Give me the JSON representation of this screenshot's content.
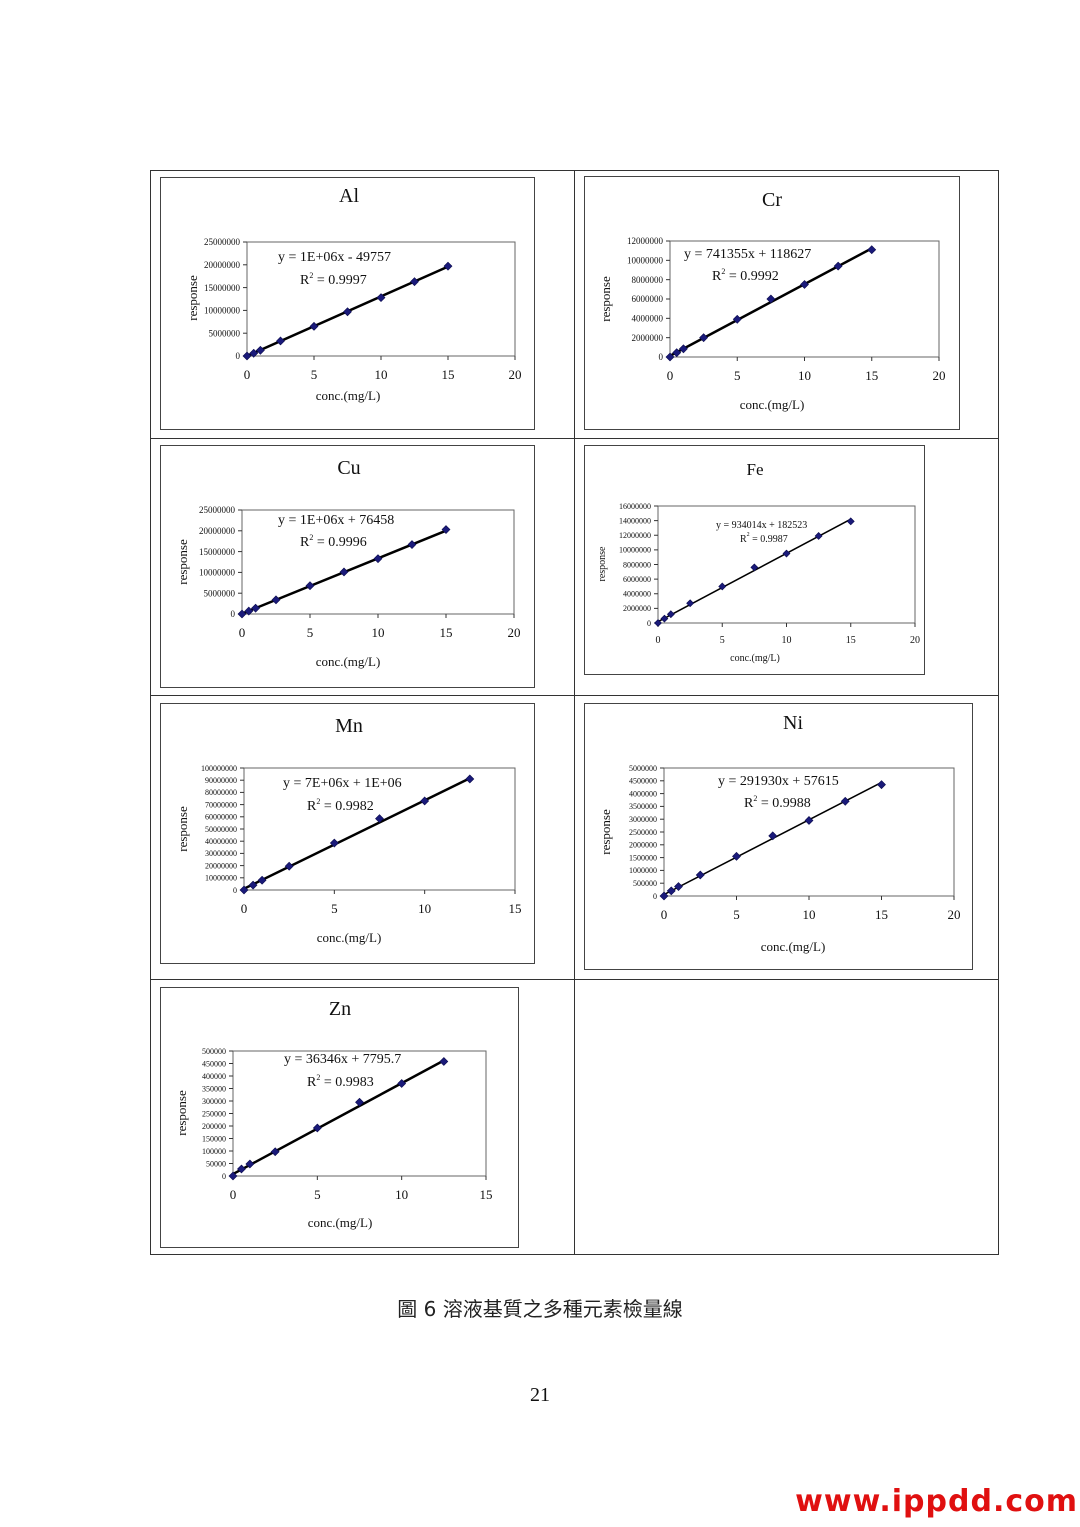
{
  "caption": "圖 6  溶液基質之多種元素檢量線",
  "page_number": "21",
  "watermark": "www.ippdd.com",
  "colors": {
    "marker": "#1a1a7a",
    "line": "#000000",
    "frame": "#444444"
  },
  "chart_data": [
    {
      "id": "al",
      "type": "scatter",
      "title": "Al",
      "xlabel": "conc.(mg/L)",
      "ylabel": "response",
      "xlim": [
        0,
        20
      ],
      "ylim": [
        0,
        25000000
      ],
      "xticks": [
        "0",
        "5",
        "10",
        "15",
        "20"
      ],
      "yticks": [
        "0",
        "5000000",
        "10000000",
        "15000000",
        "20000000",
        "25000000"
      ],
      "equation": "y = 1E+06x - 49757",
      "r2_value": " = 0.9997",
      "fit": {
        "slope": 1310000,
        "intercept": -49757
      },
      "x": [
        0,
        0.5,
        1,
        2.5,
        5,
        7.5,
        10,
        12.5,
        15
      ],
      "y": [
        0,
        600000,
        1250000,
        3300000,
        6500000,
        9700000,
        12800000,
        16300000,
        19700000
      ]
    },
    {
      "id": "cr",
      "type": "scatter",
      "title": "Cr",
      "xlabel": "conc.(mg/L)",
      "ylabel": "response",
      "xlim": [
        0,
        20
      ],
      "ylim": [
        0,
        12000000
      ],
      "xticks": [
        "0",
        "5",
        "10",
        "15",
        "20"
      ],
      "yticks": [
        "0",
        "2000000",
        "4000000",
        "6000000",
        "8000000",
        "10000000",
        "12000000"
      ],
      "equation": "y = 741355x + 118627",
      "r2_value": " = 0.9992",
      "fit": {
        "slope": 741355,
        "intercept": 118627
      },
      "x": [
        0,
        0.5,
        1,
        2.5,
        5,
        7.5,
        10,
        12.5,
        15
      ],
      "y": [
        0,
        450000,
        850000,
        2000000,
        3900000,
        6000000,
        7500000,
        9400000,
        11100000
      ]
    },
    {
      "id": "cu",
      "type": "scatter",
      "title": "Cu",
      "xlabel": "conc.(mg/L)",
      "ylabel": "response",
      "xlim": [
        0,
        20
      ],
      "ylim": [
        0,
        25000000
      ],
      "xticks": [
        "0",
        "5",
        "10",
        "15",
        "20"
      ],
      "yticks": [
        "0",
        "5000000",
        "10000000",
        "15000000",
        "20000000",
        "25000000"
      ],
      "equation": "y = 1E+06x + 76458",
      "r2_value": " = 0.9996",
      "fit": {
        "slope": 1330000,
        "intercept": 76458
      },
      "x": [
        0,
        0.5,
        1,
        2.5,
        5,
        7.5,
        10,
        12.5,
        15
      ],
      "y": [
        0,
        700000,
        1400000,
        3400000,
        6800000,
        10100000,
        13300000,
        16700000,
        20300000
      ]
    },
    {
      "id": "fe",
      "type": "scatter",
      "title": "Fe",
      "xlabel": "conc.(mg/L)",
      "ylabel": "response",
      "xlim": [
        0,
        20
      ],
      "ylim": [
        0,
        16000000
      ],
      "xticks": [
        "0",
        "5",
        "10",
        "15",
        "20"
      ],
      "yticks": [
        "0",
        "2000000",
        "4000000",
        "6000000",
        "8000000",
        "10000000",
        "12000000",
        "14000000",
        "16000000"
      ],
      "equation": "y = 934014x + 182523",
      "r2_value": " = 0.9987",
      "fit": {
        "slope": 934014,
        "intercept": 182523
      },
      "x": [
        0,
        0.5,
        1,
        2.5,
        5,
        7.5,
        10,
        12.5,
        15
      ],
      "y": [
        0,
        600000,
        1200000,
        2700000,
        5000000,
        7600000,
        9500000,
        11900000,
        13900000
      ]
    },
    {
      "id": "mn",
      "type": "scatter",
      "title": "Mn",
      "xlabel": "conc.(mg/L)",
      "ylabel": "response",
      "xlim": [
        0,
        15
      ],
      "ylim": [
        0,
        100000000
      ],
      "xticks": [
        "0",
        "5",
        "10",
        "15"
      ],
      "yticks": [
        "0",
        "10000000",
        "20000000",
        "30000000",
        "40000000",
        "50000000",
        "60000000",
        "70000000",
        "80000000",
        "90000000",
        "100000000"
      ],
      "equation": "y = 7E+06x + 1E+06",
      "r2_value": " = 0.9982",
      "fit": {
        "slope": 7250000,
        "intercept": 1000000
      },
      "x": [
        0,
        0.5,
        1,
        2.5,
        5,
        7.5,
        10,
        12.5
      ],
      "y": [
        0,
        4000000,
        8000000,
        19500000,
        38500000,
        58500000,
        73000000,
        91000000
      ]
    },
    {
      "id": "ni",
      "type": "scatter",
      "title": "Ni",
      "xlabel": "conc.(mg/L)",
      "ylabel": "response",
      "xlim": [
        0,
        20
      ],
      "ylim": [
        0,
        5000000
      ],
      "xticks": [
        "0",
        "5",
        "10",
        "15",
        "20"
      ],
      "yticks": [
        "0",
        "500000",
        "1000000",
        "1500000",
        "2000000",
        "2500000",
        "3000000",
        "3500000",
        "4000000",
        "4500000",
        "5000000"
      ],
      "equation": "y = 291930x + 57615",
      "r2_value": " = 0.9988",
      "fit": {
        "slope": 291930,
        "intercept": 57615
      },
      "x": [
        0,
        0.5,
        1,
        2.5,
        5,
        7.5,
        10,
        12.5,
        15
      ],
      "y": [
        0,
        200000,
        370000,
        820000,
        1550000,
        2350000,
        2950000,
        3700000,
        4350000
      ]
    },
    {
      "id": "zn",
      "type": "scatter",
      "title": "Zn",
      "xlabel": "conc.(mg/L)",
      "ylabel": "response",
      "xlim": [
        0,
        15
      ],
      "ylim": [
        0,
        500000
      ],
      "xticks": [
        "0",
        "5",
        "10",
        "15"
      ],
      "yticks": [
        "0",
        "50000",
        "100000",
        "150000",
        "200000",
        "250000",
        "300000",
        "350000",
        "400000",
        "450000",
        "500000"
      ],
      "equation": "y = 36346x + 7795.7",
      "r2_value": " = 0.9983",
      "fit": {
        "slope": 36346,
        "intercept": 7795.7
      },
      "x": [
        0,
        0.5,
        1,
        2.5,
        5,
        7.5,
        10,
        12.5
      ],
      "y": [
        0,
        28000,
        48000,
        97000,
        192000,
        295000,
        370000,
        458000
      ]
    }
  ]
}
